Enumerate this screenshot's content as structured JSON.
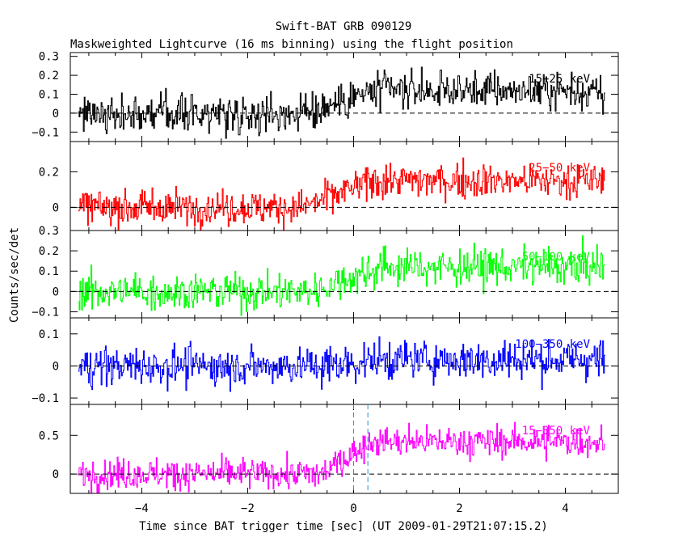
{
  "chart_data": {
    "type": "line",
    "title": "Swift-BAT GRB 090129",
    "subtitle": "Maskweighted Lightcurve (16 ms binning) using the flight position",
    "xlabel": "Time since BAT trigger time [sec] (UT 2009-01-29T21:07:15.2)",
    "ylabel": "Counts/sec/det",
    "xlim": [
      -5.35,
      5.0
    ],
    "x_ticks": [
      "−4",
      "−2",
      "0",
      "2",
      "4"
    ],
    "grid": false,
    "legend": "none",
    "bin_size_sec": 0.016,
    "x_range": [
      -5.2,
      4.75
    ],
    "vertical_markers": [
      0.0,
      0.27
    ],
    "panels": [
      {
        "name": "15−25 keV",
        "color": "#000000",
        "ylim": [
          -0.15,
          0.32
        ],
        "yticks": [
          -0.1,
          0,
          0.1,
          0.2,
          0.3
        ],
        "ytick_labels": [
          "−0.1",
          "0",
          "0.1",
          "0.2",
          "0.3"
        ],
        "baseline_pre": 0.0,
        "level_post": 0.12,
        "rise_start": -1.0,
        "rise_end": 0.5,
        "noise_sd": 0.065
      },
      {
        "name": "25−50 keV",
        "color": "#ff0000",
        "ylim": [
          -0.13,
          0.37
        ],
        "yticks": [
          0,
          0.2
        ],
        "ytick_labels": [
          "0",
          "0.2"
        ],
        "baseline_pre": 0.0,
        "level_post": 0.15,
        "rise_start": -1.0,
        "rise_end": 0.4,
        "noise_sd": 0.065
      },
      {
        "name": "50−100 keV",
        "color": "#00ff00",
        "ylim": [
          -0.13,
          0.3
        ],
        "yticks": [
          -0.1,
          0,
          0.1,
          0.2,
          0.3
        ],
        "ytick_labels": [
          "−0.1",
          "0",
          "0.1",
          "0.2",
          "0.3"
        ],
        "baseline_pre": 0.0,
        "level_post": 0.12,
        "rise_start": -0.8,
        "rise_end": 0.5,
        "noise_sd": 0.06
      },
      {
        "name": "100−350 keV",
        "color": "#0000ff",
        "ylim": [
          -0.12,
          0.15
        ],
        "yticks": [
          -0.1,
          0,
          0.1
        ],
        "ytick_labels": [
          "−0.1",
          "0",
          "0.1"
        ],
        "baseline_pre": 0.0,
        "level_post": 0.02,
        "rise_start": -0.5,
        "rise_end": 0.5,
        "noise_sd": 0.04
      },
      {
        "name": "15−350 keV",
        "color": "#ff00ff",
        "ylim": [
          -0.25,
          0.9
        ],
        "yticks": [
          0,
          0.5
        ],
        "ytick_labels": [
          "0",
          "0.5"
        ],
        "baseline_pre": 0.0,
        "level_post": 0.42,
        "rise_start": -0.6,
        "rise_end": 0.3,
        "noise_sd": 0.13
      }
    ]
  }
}
